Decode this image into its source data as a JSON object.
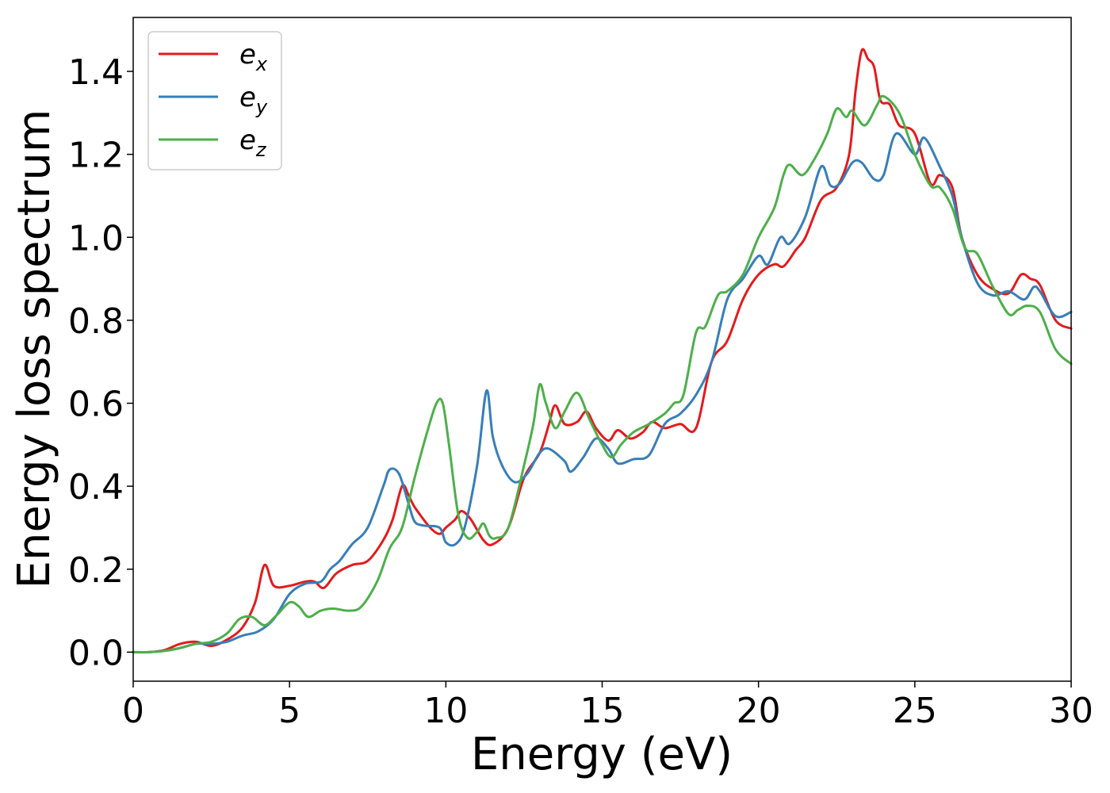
{
  "chart_data": {
    "type": "line",
    "title": "",
    "xlabel": "Energy (eV)",
    "ylabel": "Energy loss spectrum",
    "xlim": [
      0,
      30
    ],
    "ylim": [
      -0.07,
      1.53
    ],
    "xticks": [
      0,
      5,
      10,
      15,
      20,
      25,
      30
    ],
    "xtick_labels": [
      "0",
      "5",
      "10",
      "15",
      "20",
      "25",
      "30"
    ],
    "yticks": [
      0.0,
      0.2,
      0.4,
      0.6,
      0.8,
      1.0,
      1.2,
      1.4
    ],
    "ytick_labels": [
      "0.0",
      "0.2",
      "0.4",
      "0.6",
      "0.8",
      "1.0",
      "1.2",
      "1.4"
    ],
    "grid": false,
    "legend_position": "top-left",
    "series": [
      {
        "name": "e",
        "subscript": "x",
        "color": "#e41a1c",
        "x": [
          0,
          0.5,
          1.0,
          1.5,
          2.0,
          2.5,
          3.0,
          3.5,
          3.9,
          4.2,
          4.5,
          5.0,
          5.5,
          5.8,
          6.1,
          6.5,
          7.0,
          7.5,
          8.0,
          8.3,
          8.6,
          8.8,
          9.0,
          9.5,
          9.8,
          10.0,
          10.3,
          10.5,
          10.8,
          11.2,
          11.5,
          12.0,
          12.5,
          13.0,
          13.3,
          13.5,
          13.8,
          14.2,
          14.5,
          14.8,
          15.2,
          15.5,
          15.9,
          16.3,
          16.6,
          17.0,
          17.5,
          18.0,
          18.5,
          19.0,
          19.5,
          20.0,
          20.5,
          20.8,
          21.2,
          21.5,
          22.0,
          22.5,
          22.9,
          23.1,
          23.3,
          23.5,
          23.7,
          23.9,
          24.2,
          24.5,
          25.0,
          25.5,
          25.8,
          26.2,
          26.5,
          27.0,
          27.5,
          28.0,
          28.4,
          28.7,
          29.0,
          29.5,
          30.0
        ],
        "y": [
          0.0,
          0.0,
          0.005,
          0.02,
          0.025,
          0.015,
          0.03,
          0.06,
          0.12,
          0.21,
          0.16,
          0.16,
          0.17,
          0.17,
          0.155,
          0.19,
          0.21,
          0.22,
          0.27,
          0.32,
          0.4,
          0.38,
          0.35,
          0.3,
          0.285,
          0.3,
          0.32,
          0.34,
          0.32,
          0.27,
          0.26,
          0.3,
          0.42,
          0.48,
          0.55,
          0.595,
          0.55,
          0.555,
          0.58,
          0.54,
          0.51,
          0.535,
          0.515,
          0.53,
          0.555,
          0.54,
          0.55,
          0.54,
          0.7,
          0.75,
          0.85,
          0.91,
          0.935,
          0.93,
          0.97,
          1.0,
          1.09,
          1.12,
          1.2,
          1.35,
          1.45,
          1.43,
          1.41,
          1.33,
          1.32,
          1.27,
          1.25,
          1.13,
          1.15,
          1.12,
          1.0,
          0.91,
          0.875,
          0.865,
          0.91,
          0.9,
          0.885,
          0.8,
          0.78
        ]
      },
      {
        "name": "e",
        "subscript": "y",
        "color": "#377eb8",
        "x": [
          0,
          0.5,
          1.0,
          1.5,
          2.0,
          2.5,
          3.0,
          3.5,
          4.0,
          4.5,
          5.0,
          5.5,
          6.0,
          6.3,
          6.6,
          7.0,
          7.5,
          8.0,
          8.2,
          8.5,
          8.8,
          9.0,
          9.3,
          9.8,
          10.0,
          10.3,
          10.6,
          11.0,
          11.3,
          11.5,
          11.8,
          12.2,
          12.6,
          13.0,
          13.3,
          13.8,
          14.0,
          14.4,
          14.8,
          15.2,
          15.5,
          16.0,
          16.5,
          17.0,
          17.5,
          18.0,
          18.5,
          19.0,
          19.5,
          20.0,
          20.3,
          20.7,
          21.0,
          21.5,
          22.0,
          22.3,
          22.6,
          23.0,
          23.3,
          23.7,
          24.0,
          24.4,
          25.0,
          25.3,
          25.8,
          26.2,
          26.5,
          27.0,
          27.5,
          28.0,
          28.5,
          28.8,
          29.0,
          29.5,
          30.0
        ],
        "y": [
          0.0,
          0.0,
          0.003,
          0.01,
          0.02,
          0.02,
          0.025,
          0.04,
          0.05,
          0.08,
          0.14,
          0.165,
          0.17,
          0.2,
          0.22,
          0.26,
          0.3,
          0.4,
          0.44,
          0.43,
          0.36,
          0.315,
          0.305,
          0.3,
          0.265,
          0.26,
          0.3,
          0.45,
          0.63,
          0.52,
          0.45,
          0.41,
          0.43,
          0.48,
          0.49,
          0.46,
          0.435,
          0.47,
          0.515,
          0.49,
          0.455,
          0.465,
          0.475,
          0.55,
          0.575,
          0.62,
          0.7,
          0.85,
          0.9,
          0.955,
          0.935,
          1.0,
          0.985,
          1.05,
          1.17,
          1.125,
          1.13,
          1.18,
          1.18,
          1.14,
          1.15,
          1.25,
          1.2,
          1.24,
          1.17,
          1.1,
          1.0,
          0.89,
          0.86,
          0.87,
          0.85,
          0.88,
          0.87,
          0.81,
          0.82
        ]
      },
      {
        "name": "e",
        "subscript": "z",
        "color": "#4daf4a",
        "x": [
          0,
          0.5,
          1.0,
          1.5,
          2.0,
          2.5,
          3.0,
          3.4,
          3.8,
          4.2,
          4.6,
          5.0,
          5.3,
          5.6,
          6.0,
          6.4,
          6.9,
          7.3,
          7.8,
          8.2,
          8.6,
          9.0,
          9.4,
          9.7,
          9.9,
          10.1,
          10.4,
          10.7,
          11.0,
          11.2,
          11.4,
          11.6,
          12.0,
          12.5,
          12.8,
          13.0,
          13.2,
          13.5,
          13.8,
          14.2,
          14.6,
          15.0,
          15.3,
          15.6,
          16.0,
          16.5,
          17.0,
          17.3,
          17.6,
          18.0,
          18.3,
          18.7,
          19.0,
          19.5,
          20.0,
          20.5,
          20.8,
          21.0,
          21.4,
          21.8,
          22.2,
          22.5,
          22.8,
          23.0,
          23.4,
          23.8,
          24.0,
          24.5,
          25.0,
          25.5,
          25.8,
          26.2,
          26.6,
          27.0,
          27.5,
          28.0,
          28.3,
          28.6,
          29.0,
          29.5,
          30.0
        ],
        "y": [
          0.0,
          0.0,
          0.003,
          0.01,
          0.02,
          0.025,
          0.045,
          0.08,
          0.085,
          0.065,
          0.09,
          0.12,
          0.11,
          0.085,
          0.1,
          0.105,
          0.1,
          0.11,
          0.17,
          0.25,
          0.3,
          0.42,
          0.53,
          0.6,
          0.6,
          0.5,
          0.33,
          0.275,
          0.29,
          0.31,
          0.28,
          0.275,
          0.3,
          0.45,
          0.55,
          0.645,
          0.6,
          0.54,
          0.58,
          0.625,
          0.56,
          0.5,
          0.47,
          0.5,
          0.53,
          0.55,
          0.575,
          0.6,
          0.62,
          0.77,
          0.785,
          0.86,
          0.87,
          0.91,
          1.0,
          1.07,
          1.15,
          1.175,
          1.15,
          1.19,
          1.25,
          1.31,
          1.29,
          1.305,
          1.27,
          1.32,
          1.34,
          1.3,
          1.2,
          1.125,
          1.12,
          1.07,
          0.975,
          0.96,
          0.88,
          0.815,
          0.825,
          0.835,
          0.82,
          0.73,
          0.695
        ]
      }
    ]
  }
}
